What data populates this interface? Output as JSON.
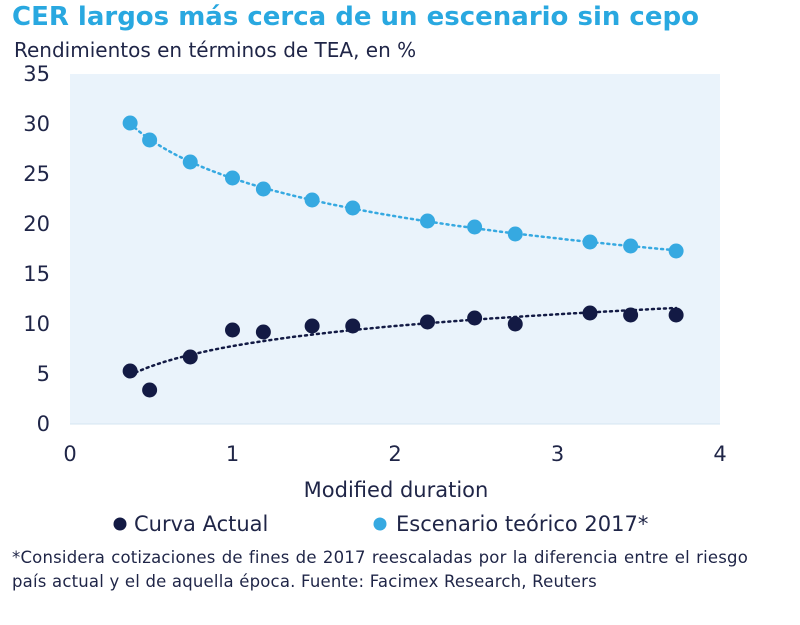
{
  "header": {
    "title": "CER largos más cerca de un escenario sin cepo",
    "subtitle": "Rendimientos en términos de TEA, en %"
  },
  "chart_data": {
    "type": "scatter",
    "xlabel": "Modified duration",
    "ylabel": "",
    "xlim": [
      0,
      4
    ],
    "ylim": [
      0,
      35
    ],
    "xticks": [
      "0",
      "1",
      "2",
      "3",
      "4"
    ],
    "yticks": [
      "0",
      "5",
      "10",
      "15",
      "20",
      "25",
      "30",
      "35"
    ],
    "grid": false,
    "legend_position": "bottom",
    "plot_background": "#eaf3fb",
    "series": [
      {
        "name": "Curva Actual",
        "color": "#131a44",
        "x": [
          0.37,
          0.49,
          0.74,
          1.0,
          1.19,
          1.49,
          1.74,
          2.2,
          2.49,
          2.74,
          3.2,
          3.45,
          3.73
        ],
        "y": [
          5.3,
          3.4,
          6.7,
          9.4,
          9.2,
          9.8,
          9.8,
          10.2,
          10.6,
          10.0,
          11.1,
          10.9,
          10.9
        ],
        "trendline": true
      },
      {
        "name": "Escenario teórico 2017*",
        "color": "#36a9e1",
        "x": [
          0.37,
          0.49,
          0.74,
          1.0,
          1.19,
          1.49,
          1.74,
          2.2,
          2.49,
          2.74,
          3.2,
          3.45,
          3.73
        ],
        "y": [
          30.1,
          28.4,
          26.2,
          24.6,
          23.5,
          22.4,
          21.6,
          20.3,
          19.7,
          19.0,
          18.2,
          17.8,
          17.3
        ],
        "trendline": true
      }
    ]
  },
  "footnote": "*Considera cotizaciones de fines de 2017 reescaladas por la diferencia entre el riesgo país actual y el de aquella época. Fuente: Facimex Research, Reuters"
}
